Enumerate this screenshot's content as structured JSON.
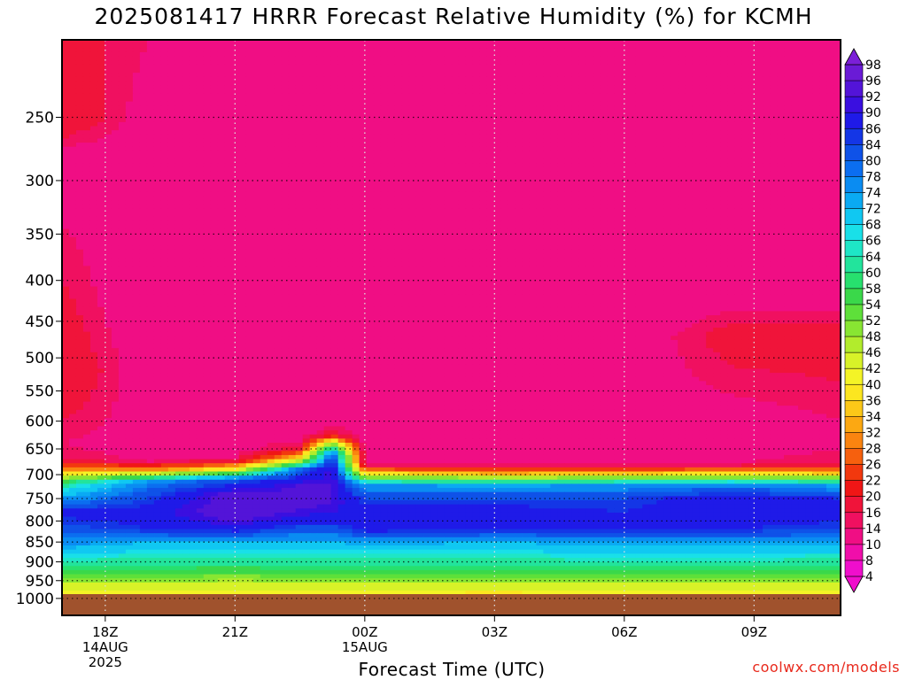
{
  "title": "2025081417 HRRR Forecast Relative Humidity (%) for KCMH",
  "credit": "coolwx.com/models",
  "chart_data": {
    "type": "heatmap",
    "title": "2025081417 HRRR Forecast Relative Humidity (%) for KCMH",
    "xlabel": "Forecast Time (UTC)",
    "ylabel": "",
    "y_log_pressure": true,
    "ylim": [
      1050,
      200
    ],
    "xlim_hours_utc": [
      "2025-08-14T17Z",
      "2025-08-15T11Z"
    ],
    "yticks": [
      250,
      300,
      350,
      400,
      450,
      500,
      550,
      600,
      650,
      700,
      750,
      800,
      850,
      900,
      950,
      1000
    ],
    "xticks": [
      {
        "label": "18Z",
        "sub1": "14AUG",
        "sub2": "2025",
        "time": "2025-08-14T18Z"
      },
      {
        "label": "21Z",
        "sub1": "",
        "sub2": "",
        "time": "2025-08-14T21Z"
      },
      {
        "label": "00Z",
        "sub1": "15AUG",
        "sub2": "",
        "time": "2025-08-15T00Z"
      },
      {
        "label": "03Z",
        "sub1": "",
        "sub2": "",
        "time": "2025-08-15T03Z"
      },
      {
        "label": "06Z",
        "sub1": "",
        "sub2": "",
        "time": "2025-08-15T06Z"
      },
      {
        "label": "09Z",
        "sub1": "",
        "sub2": "",
        "time": "2025-08-15T09Z"
      }
    ],
    "grid": true,
    "underground_color": "#a0522d",
    "colorbar": {
      "levels": [
        98,
        96,
        92,
        90,
        86,
        84,
        80,
        78,
        74,
        72,
        68,
        66,
        64,
        60,
        58,
        54,
        52,
        48,
        46,
        42,
        40,
        36,
        34,
        32,
        28,
        26,
        22,
        20,
        16,
        14,
        10,
        8,
        4
      ],
      "colors": [
        "#7b1fd8",
        "#6a1bd6",
        "#5314d8",
        "#3a0fe0",
        "#1f1ae8",
        "#1436e6",
        "#0f52e8",
        "#0b6ef0",
        "#0a8cf2",
        "#0aaaf3",
        "#10c8f2",
        "#19e0e8",
        "#1ee6c6",
        "#22e49c",
        "#27e06e",
        "#3ad84a",
        "#5ee03a",
        "#88e632",
        "#b2ec2c",
        "#d8f228",
        "#f4f426",
        "#fce620",
        "#fcc818",
        "#fca812",
        "#fa8410",
        "#f6600e",
        "#f2380e",
        "#f01616",
        "#f0143a",
        "#f01060",
        "#f00e84",
        "#f00eaa",
        "#f00ecc"
      ],
      "extend": "both"
    },
    "rh_profiles": [
      {
        "time": "2025-08-14T17Z",
        "p": [
          200,
          250,
          280,
          400,
          520,
          560,
          640,
          670,
          690,
          720,
          750,
          780,
          820,
          850,
          890,
          930,
          960,
          990
        ],
        "rh": [
          18,
          20,
          12,
          16,
          20,
          18,
          14,
          16,
          30,
          62,
          74,
          88,
          82,
          76,
          66,
          56,
          44,
          40
        ]
      },
      {
        "time": "2025-08-14T19Z",
        "p": [
          200,
          250,
          400,
          600,
          650,
          675,
          690,
          715,
          745,
          780,
          820,
          850,
          890,
          930,
          960,
          990
        ],
        "rh": [
          14,
          12,
          10,
          12,
          12,
          14,
          30,
          76,
          84,
          88,
          86,
          72,
          64,
          56,
          46,
          40
        ]
      },
      {
        "time": "2025-08-14T21Z",
        "p": [
          200,
          250,
          400,
          600,
          650,
          670,
          690,
          710,
          740,
          780,
          820,
          850,
          890,
          930,
          960,
          990
        ],
        "rh": [
          14,
          12,
          10,
          12,
          12,
          14,
          40,
          82,
          94,
          96,
          88,
          72,
          64,
          54,
          44,
          40
        ]
      },
      {
        "time": "2025-08-14T22:30Z",
        "p": [
          200,
          250,
          400,
          600,
          630,
          650,
          670,
          690,
          720,
          760,
          800,
          850,
          890,
          930,
          960,
          990
        ],
        "rh": [
          14,
          12,
          10,
          12,
          12,
          18,
          40,
          80,
          92,
          94,
          88,
          72,
          64,
          56,
          46,
          40
        ]
      },
      {
        "time": "2025-08-14T23:15Z",
        "p": [
          200,
          250,
          400,
          600,
          625,
          640,
          660,
          690,
          720,
          760,
          800,
          850,
          890,
          930,
          960,
          990
        ],
        "rh": [
          14,
          12,
          10,
          12,
          18,
          50,
          82,
          92,
          92,
          92,
          88,
          72,
          64,
          56,
          46,
          40
        ]
      },
      {
        "time": "2025-08-15T00Z",
        "p": [
          200,
          250,
          400,
          600,
          650,
          680,
          700,
          720,
          750,
          780,
          820,
          850,
          890,
          930,
          960,
          990
        ],
        "rh": [
          14,
          12,
          10,
          12,
          12,
          14,
          40,
          74,
          84,
          88,
          88,
          74,
          64,
          56,
          46,
          40
        ]
      },
      {
        "time": "2025-08-15T03Z",
        "p": [
          200,
          250,
          400,
          600,
          650,
          680,
          700,
          720,
          750,
          780,
          820,
          850,
          890,
          930,
          960,
          990
        ],
        "rh": [
          14,
          12,
          10,
          12,
          12,
          14,
          36,
          72,
          84,
          88,
          86,
          72,
          64,
          56,
          46,
          38
        ]
      },
      {
        "time": "2025-08-15T06Z",
        "p": [
          200,
          250,
          400,
          600,
          650,
          680,
          700,
          720,
          750,
          780,
          820,
          850,
          890,
          930,
          960,
          990
        ],
        "rh": [
          14,
          12,
          10,
          12,
          12,
          14,
          38,
          74,
          84,
          86,
          86,
          74,
          66,
          56,
          46,
          40
        ]
      },
      {
        "time": "2025-08-15T08:30Z",
        "p": [
          200,
          250,
          400,
          470,
          600,
          650,
          680,
          700,
          720,
          750,
          780,
          820,
          850,
          890,
          930,
          960,
          990
        ],
        "rh": [
          14,
          12,
          10,
          18,
          12,
          12,
          14,
          40,
          76,
          90,
          90,
          86,
          74,
          66,
          56,
          46,
          40
        ]
      },
      {
        "time": "2025-08-15T11Z",
        "p": [
          200,
          250,
          400,
          470,
          600,
          650,
          680,
          700,
          720,
          750,
          780,
          820,
          850,
          890,
          930,
          960,
          990
        ],
        "rh": [
          14,
          12,
          10,
          18,
          14,
          14,
          16,
          38,
          72,
          86,
          88,
          84,
          74,
          64,
          56,
          46,
          40
        ]
      }
    ]
  }
}
